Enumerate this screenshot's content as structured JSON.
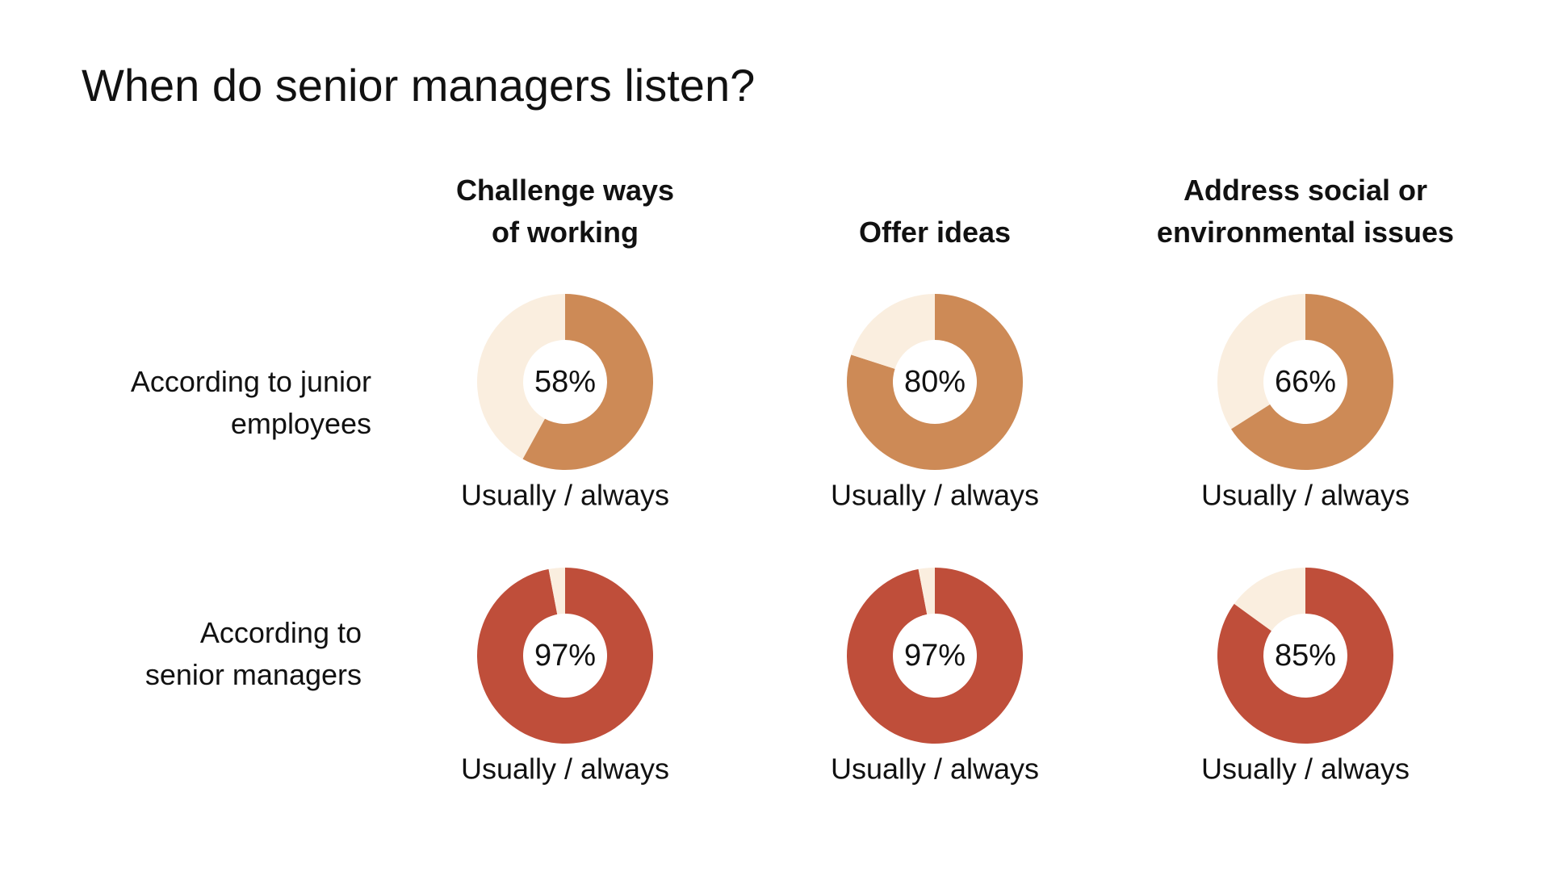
{
  "chart_data": {
    "type": "pie",
    "title": "When do senior managers listen?",
    "columns": [
      {
        "lines": [
          "Challenge ways",
          "of working"
        ]
      },
      {
        "lines": [
          "Offer ideas"
        ]
      },
      {
        "lines": [
          "Address social or",
          "environmental issues"
        ]
      }
    ],
    "rows": [
      {
        "lines": [
          "According to junior",
          "employees"
        ],
        "color": "#CD8A56",
        "values": [
          58,
          80,
          66
        ]
      },
      {
        "lines": [
          "According to",
          "senior managers"
        ],
        "color": "#BF4E3A",
        "values": [
          97,
          97,
          85
        ]
      }
    ],
    "remainder_color": "#FAEEDF",
    "value_suffix": "%",
    "slice_label": "Usually / always"
  }
}
